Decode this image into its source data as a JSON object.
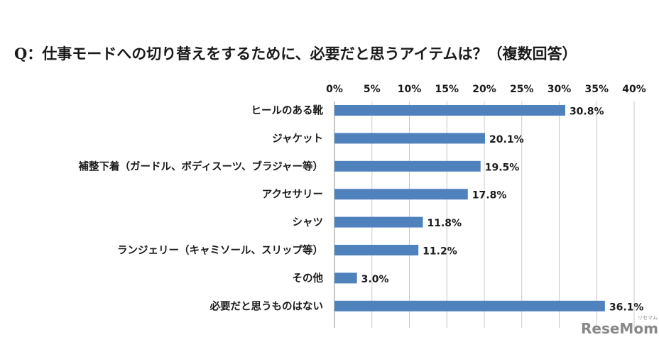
{
  "title": "Q：仕事モードへの切り替えをするために、必要だと思うアイテムは？（複数回答）",
  "chart_data": {
    "type": "bar",
    "orientation": "horizontal",
    "categories": [
      "ヒールのある靴",
      "ジャケット",
      "補整下着（ガードル、ボディスーツ、ブラジャー等）",
      "アクセサリー",
      "シャツ",
      "ランジェリー（キャミソール、スリップ等）",
      "その他",
      "必要だと思うものはない"
    ],
    "values": [
      30.8,
      20.1,
      19.5,
      17.8,
      11.8,
      11.2,
      3.0,
      36.1
    ],
    "value_labels": [
      "30.8%",
      "20.1%",
      "19.5%",
      "17.8%",
      "11.8%",
      "11.2%",
      "3.0%",
      "36.1%"
    ],
    "xlim": [
      0,
      40
    ],
    "xticks": [
      "0%",
      "5%",
      "10%",
      "15%",
      "20%",
      "25%",
      "30%",
      "35%",
      "40%"
    ],
    "x_axis_position": "top",
    "grid": true,
    "bar_color": "#4f81bd"
  },
  "watermark": {
    "logo": "ReseMom",
    "sub": "リセマム"
  }
}
